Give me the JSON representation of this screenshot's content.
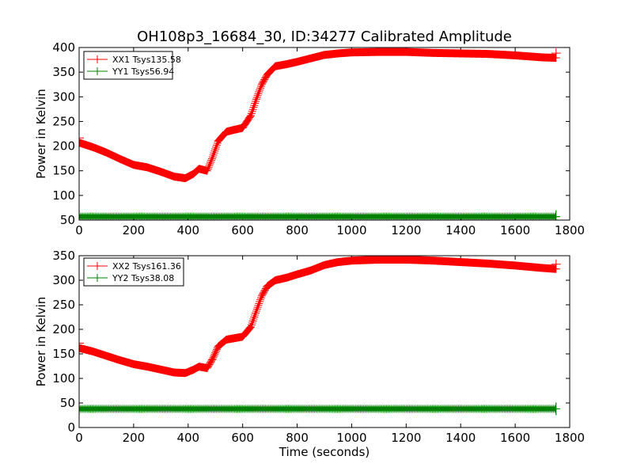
{
  "chart_data": {
    "type": "line",
    "title": "OH108p3_16684_30, ID:34277 Calibrated Amplitude",
    "xlabel": "Time (seconds)",
    "ylabel": "Power in Kelvin",
    "xlim": [
      0,
      1800
    ],
    "x_ticks": [
      0,
      200,
      400,
      600,
      800,
      1000,
      1200,
      1400,
      1600,
      1800
    ],
    "legend_placement": "top-left",
    "marker": "+",
    "panels": [
      {
        "ylim": [
          50,
          400
        ],
        "y_ticks": [
          50,
          100,
          150,
          200,
          250,
          300,
          350,
          400
        ],
        "series": [
          {
            "name": "XX1 Tsys135.58",
            "color": "#ff0000",
            "x": [
              0,
              50,
              100,
              150,
              200,
              250,
              300,
              350,
              390,
              420,
              440,
              470,
              490,
              510,
              540,
              560,
              600,
              630,
              650,
              670,
              690,
              720,
              760,
              800,
              850,
              900,
              950,
              1000,
              1100,
              1200,
              1300,
              1400,
              1500,
              1600,
              1700,
              1750
            ],
            "y": [
              207,
              198,
              187,
              174,
              162,
              157,
              148,
              138,
              135,
              144,
              154,
              150,
              178,
              210,
              229,
              232,
              237,
              262,
              295,
              325,
              345,
              362,
              366,
              371,
              378,
              385,
              388,
              390,
              391,
              391,
              389,
              388,
              387,
              384,
              380,
              379
            ]
          },
          {
            "name": "YY1 Tsys56.94",
            "color": "#008000",
            "x": [
              0,
              1750
            ],
            "y": [
              57,
              57
            ]
          }
        ]
      },
      {
        "ylim": [
          0,
          350
        ],
        "y_ticks": [
          0,
          50,
          100,
          150,
          200,
          250,
          300,
          350
        ],
        "series": [
          {
            "name": "XX2 Tsys161.36",
            "color": "#ff0000",
            "x": [
              0,
              50,
              100,
              150,
              200,
              250,
              300,
              350,
              390,
              420,
              440,
              470,
              490,
              510,
              540,
              560,
              600,
              630,
              650,
              670,
              690,
              720,
              760,
              800,
              850,
              900,
              950,
              1000,
              1100,
              1200,
              1300,
              1400,
              1500,
              1600,
              1700,
              1750
            ],
            "y": [
              162,
              155,
              146,
              137,
              129,
              124,
              118,
              112,
              111,
              118,
              124,
              121,
              140,
              165,
              179,
              181,
              185,
              205,
              237,
              268,
              288,
              300,
              305,
              312,
              320,
              331,
              337,
              340,
              342,
              342,
              340,
              337,
              334,
              330,
              325,
              323
            ]
          },
          {
            "name": "YY2 Tsys38.08",
            "color": "#008000",
            "x": [
              0,
              1750
            ],
            "y": [
              38,
              38
            ]
          }
        ]
      }
    ]
  }
}
